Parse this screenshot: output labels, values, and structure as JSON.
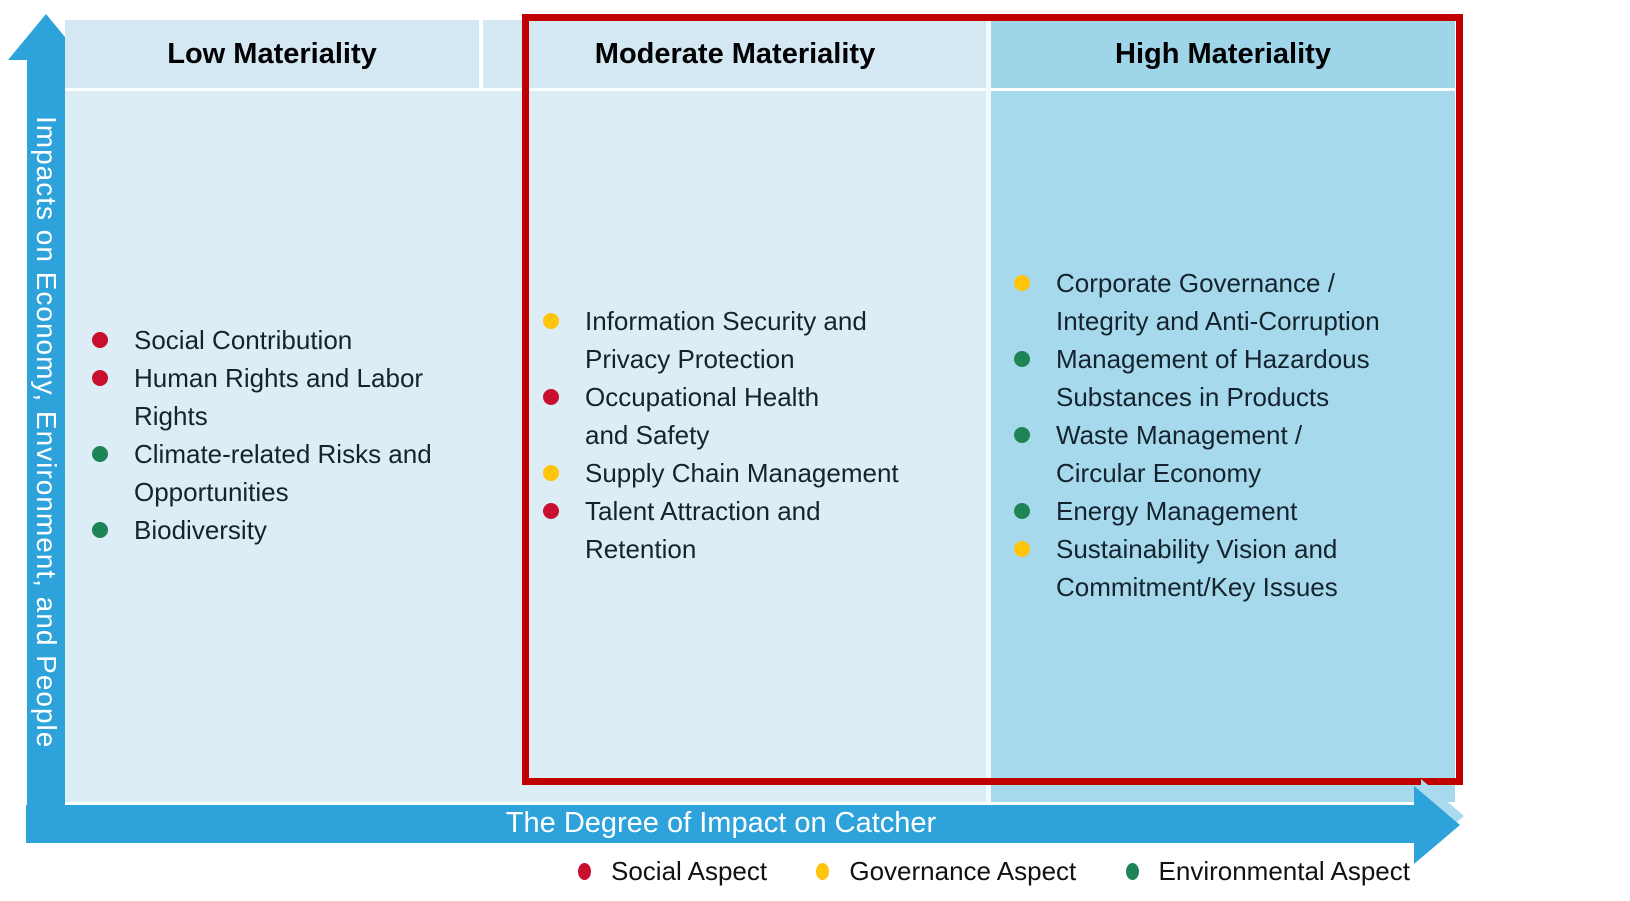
{
  "axes": {
    "y_label": "Impacts on Economy, Environment, and People",
    "x_label": "The Degree of Impact on Catcher"
  },
  "columns": [
    {
      "header": "Low Materiality",
      "level": "low",
      "items": [
        {
          "category": "social",
          "text": "Social Contribution"
        },
        {
          "category": "social",
          "text": "Human Rights and Labor\nRights"
        },
        {
          "category": "environmental",
          "text": "Climate-related Risks and\nOpportunities"
        },
        {
          "category": "environmental",
          "text": "Biodiversity"
        }
      ]
    },
    {
      "header": "Moderate Materiality",
      "level": "moderate",
      "items": [
        {
          "category": "governance",
          "text": "Information Security and\nPrivacy Protection"
        },
        {
          "category": "social",
          "text": "Occupational Health\nand Safety"
        },
        {
          "category": "governance",
          "text": "Supply Chain Management"
        },
        {
          "category": "social",
          "text": "Talent Attraction and\nRetention"
        }
      ]
    },
    {
      "header": "High Materiality",
      "level": "high",
      "items": [
        {
          "category": "governance",
          "text": "Corporate Governance /\nIntegrity and Anti-Corruption"
        },
        {
          "category": "environmental",
          "text": "Management of Hazardous\nSubstances in Products"
        },
        {
          "category": "environmental",
          "text": "Waste Management /\nCircular Economy"
        },
        {
          "category": "environmental",
          "text": "Energy Management"
        },
        {
          "category": "governance",
          "text": "Sustainability Vision and\nCommitment/Key Issues"
        }
      ]
    }
  ],
  "legend": {
    "items": [
      {
        "category": "social",
        "label": "Social Aspect"
      },
      {
        "category": "governance",
        "label": "Governance Aspect"
      },
      {
        "category": "environmental",
        "label": "Environmental Aspect"
      }
    ]
  },
  "colors": {
    "social": "#C8102E",
    "governance": "#FFC40C",
    "environmental": "#1E8456",
    "arrow": "#2EA3DB",
    "arrow_light": "#A9DAEE",
    "column_low_moderate_bg": "#DCEDF6",
    "column_high_bg": "#A6D9EC",
    "highlight_border": "#C00000"
  }
}
